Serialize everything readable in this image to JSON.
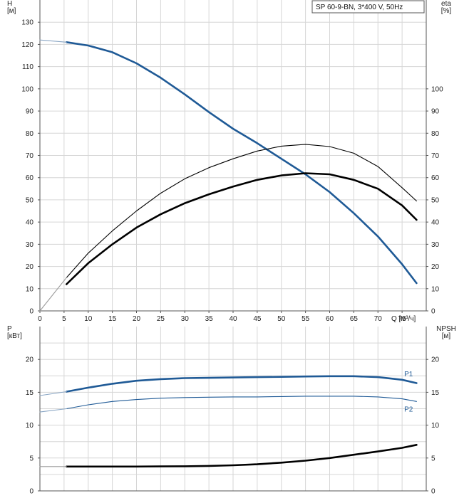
{
  "chart_data": [
    {
      "type": "line",
      "panel": "top",
      "legend": "SP 60-9-BN, 3*400 V, 50Hz",
      "legend_placement": "top-right",
      "xlabel": "Q [м³/ч]",
      "ylabel_left": "H\n[м]",
      "ylabel_right": "eta\n[%]",
      "xlim": [
        0,
        80
      ],
      "ylim_left": [
        0,
        140
      ],
      "ylim_right": [
        0,
        140
      ],
      "grid": true,
      "x_ticks": [
        0,
        5,
        10,
        15,
        20,
        25,
        30,
        35,
        40,
        45,
        50,
        55,
        60,
        65,
        70,
        75
      ],
      "y_ticks_left": [
        0,
        10,
        20,
        30,
        40,
        50,
        60,
        70,
        80,
        90,
        100,
        110,
        120,
        130
      ],
      "y_ticks_right": [
        0,
        10,
        20,
        30,
        40,
        50,
        60,
        70,
        80,
        90,
        100
      ],
      "series": [
        {
          "name": "H",
          "color": "#1f5a96",
          "axis": "left",
          "style": "thick",
          "points": [
            [
              5.5,
              121
            ],
            [
              10,
              119.5
            ],
            [
              15,
              116.5
            ],
            [
              20,
              111.5
            ],
            [
              25,
              105
            ],
            [
              30,
              97.5
            ],
            [
              35,
              89.5
            ],
            [
              40,
              82
            ],
            [
              45,
              75.5
            ],
            [
              50,
              68.5
            ],
            [
              55,
              61.5
            ],
            [
              60,
              53.5
            ],
            [
              65,
              44
            ],
            [
              70,
              33.5
            ],
            [
              75,
              21
            ],
            [
              78,
              12.5
            ]
          ]
        },
        {
          "name": "H (extrapolated)",
          "color": "#8aa6c4",
          "axis": "left",
          "style": "thin",
          "points": [
            [
              0,
              122
            ],
            [
              5.5,
              121
            ]
          ]
        },
        {
          "name": "eta",
          "color": "#000000",
          "axis": "right",
          "style": "thin",
          "points": [
            [
              5.5,
              15
            ],
            [
              10,
              26
            ],
            [
              15,
              36
            ],
            [
              20,
              45
            ],
            [
              25,
              53
            ],
            [
              30,
              59.5
            ],
            [
              35,
              64.5
            ],
            [
              40,
              68.5
            ],
            [
              45,
              72
            ],
            [
              50,
              74.2
            ],
            [
              55,
              75
            ],
            [
              60,
              74
            ],
            [
              65,
              71
            ],
            [
              70,
              65
            ],
            [
              75,
              55.5
            ],
            [
              78,
              49.5
            ]
          ]
        },
        {
          "name": "eta (extrapolated)",
          "color": "#9a9a9a",
          "axis": "right",
          "style": "thin",
          "points": [
            [
              0,
              0
            ],
            [
              5.5,
              15
            ]
          ]
        },
        {
          "name": "eta2",
          "color": "#000000",
          "axis": "right",
          "style": "thick",
          "points": [
            [
              5.5,
              12
            ],
            [
              10,
              21.5
            ],
            [
              15,
              30
            ],
            [
              20,
              37.5
            ],
            [
              25,
              43.5
            ],
            [
              30,
              48.5
            ],
            [
              35,
              52.5
            ],
            [
              40,
              56
            ],
            [
              45,
              59
            ],
            [
              50,
              61
            ],
            [
              55,
              62
            ],
            [
              60,
              61.5
            ],
            [
              65,
              59
            ],
            [
              70,
              55
            ],
            [
              75,
              47.5
            ],
            [
              78,
              41
            ]
          ]
        }
      ]
    },
    {
      "type": "line",
      "panel": "bottom",
      "xlabel": "",
      "ylabel_left": "P\n[кВт]",
      "ylabel_right": "NPSH\n[м]",
      "xlim": [
        0,
        80
      ],
      "ylim_left": [
        0,
        25
      ],
      "ylim_right": [
        0,
        25
      ],
      "grid": true,
      "y_ticks_left": [
        0,
        5,
        10,
        15,
        20
      ],
      "y_ticks_right": [
        0,
        5,
        10,
        15,
        20
      ],
      "series": [
        {
          "name": "P1",
          "color": "#1f5a96",
          "axis": "left",
          "style": "thick",
          "label": "P1",
          "points": [
            [
              5.5,
              15.1
            ],
            [
              10,
              15.7
            ],
            [
              15,
              16.3
            ],
            [
              20,
              16.75
            ],
            [
              25,
              17
            ],
            [
              30,
              17.15
            ],
            [
              35,
              17.2
            ],
            [
              40,
              17.25
            ],
            [
              45,
              17.3
            ],
            [
              50,
              17.35
            ],
            [
              55,
              17.4
            ],
            [
              60,
              17.45
            ],
            [
              65,
              17.45
            ],
            [
              70,
              17.3
            ],
            [
              75,
              16.9
            ],
            [
              78,
              16.4
            ]
          ]
        },
        {
          "name": "P1 (extrapolated)",
          "color": "#8aa6c4",
          "axis": "left",
          "style": "thin",
          "points": [
            [
              0,
              14.5
            ],
            [
              5.5,
              15.1
            ]
          ]
        },
        {
          "name": "P2",
          "color": "#1f5a96",
          "axis": "left",
          "style": "thin",
          "label": "P2",
          "points": [
            [
              5.5,
              12.5
            ],
            [
              10,
              13.1
            ],
            [
              15,
              13.6
            ],
            [
              20,
              13.9
            ],
            [
              25,
              14.1
            ],
            [
              30,
              14.2
            ],
            [
              35,
              14.25
            ],
            [
              40,
              14.3
            ],
            [
              45,
              14.3
            ],
            [
              50,
              14.35
            ],
            [
              55,
              14.4
            ],
            [
              60,
              14.4
            ],
            [
              65,
              14.4
            ],
            [
              70,
              14.3
            ],
            [
              75,
              14
            ],
            [
              78,
              13.6
            ]
          ]
        },
        {
          "name": "P2 (extrapolated)",
          "color": "#8aa6c4",
          "axis": "left",
          "style": "thin",
          "points": [
            [
              0,
              12
            ],
            [
              5.5,
              12.5
            ]
          ]
        },
        {
          "name": "NPSH",
          "color": "#000000",
          "axis": "right",
          "style": "thick",
          "points": [
            [
              5.5,
              3.7
            ],
            [
              10,
              3.7
            ],
            [
              15,
              3.7
            ],
            [
              20,
              3.7
            ],
            [
              25,
              3.72
            ],
            [
              30,
              3.75
            ],
            [
              35,
              3.8
            ],
            [
              40,
              3.9
            ],
            [
              45,
              4.05
            ],
            [
              50,
              4.3
            ],
            [
              55,
              4.6
            ],
            [
              60,
              5
            ],
            [
              65,
              5.5
            ],
            [
              70,
              6
            ],
            [
              75,
              6.55
            ],
            [
              78,
              7
            ]
          ]
        },
        {
          "name": "NPSH (extrapolated)",
          "color": "#9a9a9a",
          "axis": "right",
          "style": "thin",
          "points": [
            [
              0,
              3.7
            ],
            [
              5.5,
              3.7
            ]
          ]
        }
      ]
    }
  ]
}
